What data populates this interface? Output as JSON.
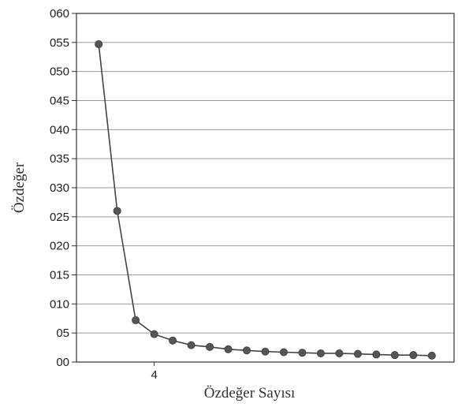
{
  "chart_data": {
    "type": "line",
    "title": "",
    "xlabel": "Özdeğer Sayısı",
    "ylabel": "Özdeğer",
    "x": [
      1,
      2,
      3,
      4,
      5,
      6,
      7,
      8,
      9,
      10,
      11,
      12,
      13,
      14,
      15,
      16,
      17,
      18,
      19
    ],
    "values": [
      54.7,
      26.0,
      7.2,
      4.8,
      3.7,
      2.9,
      2.6,
      2.2,
      2.0,
      1.8,
      1.7,
      1.6,
      1.5,
      1.5,
      1.4,
      1.3,
      1.2,
      1.2,
      1.1
    ],
    "xlim": [
      -0.2,
      20.2
    ],
    "ylim": [
      0,
      60
    ],
    "ytick_values": [
      0,
      5,
      10,
      15,
      20,
      25,
      30,
      35,
      40,
      45,
      50,
      55,
      60
    ],
    "ytick_labels": [
      "00",
      "05",
      "010",
      "015",
      "020",
      "025",
      "030",
      "035",
      "040",
      "045",
      "050",
      "055",
      "060"
    ],
    "xtick_values": [
      4
    ],
    "xtick_labels": [
      "4"
    ],
    "grid": "horizontal",
    "legend": "none",
    "line_color": "#444444",
    "marker_color": "#555555",
    "grid_color": "#9a9a9a"
  }
}
